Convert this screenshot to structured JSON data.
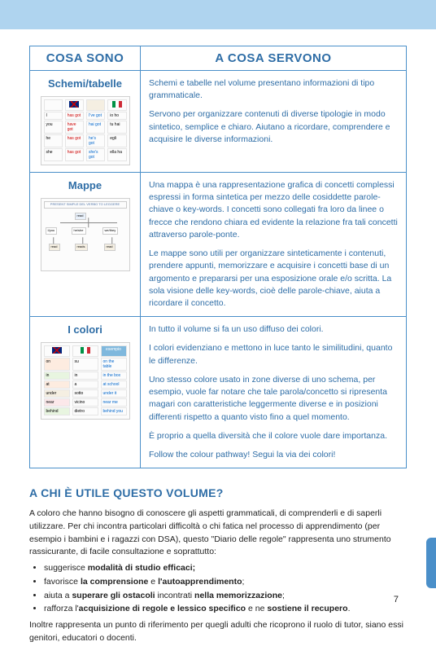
{
  "header": {
    "col1": "COSA SONO",
    "col2": "A COSA SERVONO"
  },
  "rows": [
    {
      "label": "Schemi/tabelle",
      "thumb": "schemi",
      "paras": [
        "Schemi e tabelle nel volume presentano informazioni di tipo grammaticale.",
        "Servono per organizzare contenuti di diverse tipologie in modo sintetico, semplice e chiaro. Aiutano a ricordare, comprendere e acquisire le diverse informazioni."
      ]
    },
    {
      "label": "Mappe",
      "thumb": "mappe",
      "paras": [
        "Una mappa è una rappresentazione grafica di concetti complessi espressi in forma sintetica per mezzo delle cosiddette parole-chiave o key-words. I concetti sono collegati fra loro da linee o frecce che rendono chiara ed evidente la relazione fra tali concetti attraverso parole-ponte.",
        "Le mappe sono utili per organizzare sinteticamente i contenuti, prendere appunti, memorizzare e acquisire i concetti base di un argomento e prepararsi per una esposizione orale e/o scritta. La sola visione delle key-words, cioè delle parole-chiave, aiuta a ricordare il concetto."
      ]
    },
    {
      "label": "I colori",
      "thumb": "colori",
      "paras": [
        "In tutto il volume si fa un uso diffuso dei colori.",
        "I colori evidenziano e mettono in luce tanto le similitudini, quanto le differenze.",
        "Uno stesso colore usato in zone diverse di uno schema, per esempio, vuole far notare che tale parola/concetto si ripresenta magari con caratteristiche leggermente diverse e in posizioni differenti rispetto a quanto visto fino a quel momento.",
        "È proprio a quella diversità che il colore vuole dare importanza.",
        "Follow the colour pathway! Segui la via dei colori!"
      ]
    }
  ],
  "section": {
    "title": "A CHI È UTILE QUESTO VOLUME?",
    "intro": "A coloro che hanno bisogno di conoscere gli aspetti grammaticali, di comprenderli e di saperli utilizzare. Per chi incontra particolari difficoltà o chi fatica nel processo di apprendimento (per esempio i bambini e i ragazzi con DSA), questo \"Diario delle regole\" rappresenta uno strumento rassicurante, di facile consultazione e soprattutto:",
    "bullets": [
      "suggerisce <b>modalità di studio efficaci;</b>",
      "favorisce <b>la comprensione</b> e <b>l'autoapprendimento</b>;",
      "aiuta a <b>superare gli ostacoli</b> incontrati <b>nella memorizzazione</b>;",
      "rafforza l'<b>acquisizione di regole e lessico specifico</b> e ne <b>sostiene il recupero</b>."
    ],
    "outro": "Inoltre rappresenta un punto di riferimento per quegli adulti che ricoprono il ruolo di tutor, siano essi genitori, educatori o docenti."
  },
  "pagenum": "7"
}
